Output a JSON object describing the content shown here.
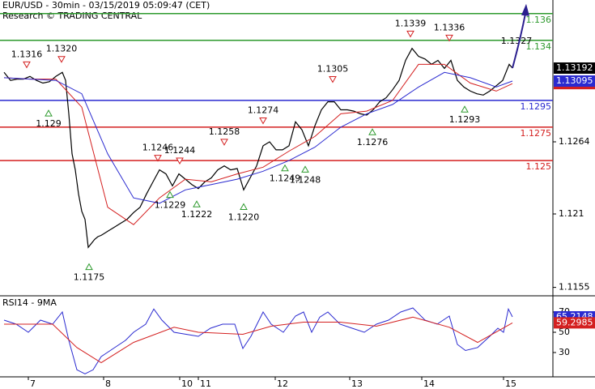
{
  "chart_data": [
    {
      "type": "line",
      "title": "EUR/USD - 30min - 03/15/2019 05:09:47 (CET)",
      "subtitle": "Research © TRADING CENTRAL",
      "xlim": [
        -2.5,
        339
      ],
      "xticks": [
        {
          "value": 15,
          "label": "7"
        },
        {
          "value": 61.5,
          "label": "8"
        },
        {
          "value": 108.5,
          "label": "10"
        },
        {
          "value": 120,
          "label": "11"
        },
        {
          "value": 167.5,
          "label": "12"
        },
        {
          "value": 213.5,
          "label": "13"
        },
        {
          "value": 258,
          "label": "14"
        },
        {
          "value": 308.5,
          "label": "15"
        }
      ],
      "ylim": [
        1.11487,
        1.13702
      ],
      "yticks": [
        1.1155,
        1.121,
        1.1264
      ],
      "series": [
        {
          "color": "#000000",
          "width": 1.2,
          "box": true,
          "x": [
            0,
            4,
            8,
            12,
            16,
            20,
            24,
            28,
            32,
            36,
            38,
            40,
            42,
            44,
            46,
            48,
            50,
            52,
            54,
            56,
            58,
            60,
            64,
            68,
            72,
            76,
            80,
            84,
            88,
            92,
            96,
            100,
            104,
            108,
            112,
            116,
            120,
            124,
            128,
            132,
            136,
            140,
            144,
            148,
            152,
            156,
            160,
            164,
            168,
            172,
            176,
            180,
            184,
            188,
            192,
            196,
            200,
            204,
            208,
            212,
            216,
            220,
            224,
            228,
            232,
            236,
            240,
            244,
            248,
            252,
            256,
            260,
            264,
            268,
            272,
            276,
            280,
            284,
            288,
            292,
            296,
            300,
            304,
            308,
            312,
            314
          ],
          "values": [
            1.1316,
            1.131,
            1.1311,
            1.1311,
            1.1313,
            1.131,
            1.1308,
            1.1309,
            1.1313,
            1.1316,
            1.131,
            1.1285,
            1.1255,
            1.1243,
            1.1225,
            1.1212,
            1.1206,
            1.1185,
            1.1188,
            1.1191,
            1.1193,
            1.1194,
            1.1197,
            1.12,
            1.1203,
            1.1206,
            1.1211,
            1.1215,
            1.1225,
            1.1234,
            1.1243,
            1.124,
            1.1231,
            1.124,
            1.1236,
            1.1232,
            1.1229,
            1.1234,
            1.1237,
            1.1243,
            1.1246,
            1.1243,
            1.1244,
            1.1228,
            1.1237,
            1.1246,
            1.1261,
            1.1264,
            1.1258,
            1.1258,
            1.1261,
            1.1279,
            1.1273,
            1.1261,
            1.1276,
            1.1288,
            1.1294,
            1.1294,
            1.1288,
            1.1288,
            1.1287,
            1.1285,
            1.1284,
            1.1288,
            1.1294,
            1.1297,
            1.1303,
            1.131,
            1.1325,
            1.1334,
            1.1328,
            1.1326,
            1.1322,
            1.1325,
            1.1319,
            1.1325,
            1.131,
            1.1305,
            1.1302,
            1.13,
            1.1299,
            1.1302,
            1.1306,
            1.131,
            1.1322,
            1.13192
          ]
        },
        {
          "color": "#d42020",
          "width": 1,
          "box": true,
          "x": [
            0,
            16,
            32,
            48,
            64,
            80,
            96,
            112,
            128,
            144,
            160,
            176,
            192,
            208,
            224,
            240,
            256,
            272,
            288,
            304,
            314
          ],
          "values": [
            1.1312,
            1.1311,
            1.1311,
            1.129,
            1.1215,
            1.1202,
            1.1222,
            1.1236,
            1.1234,
            1.124,
            1.1245,
            1.1257,
            1.1268,
            1.1285,
            1.1287,
            1.1295,
            1.1322,
            1.1322,
            1.1308,
            1.1302,
            1.13076
          ]
        },
        {
          "color": "#2a2ad0",
          "width": 1,
          "box": true,
          "x": [
            0,
            16,
            32,
            48,
            64,
            80,
            96,
            112,
            128,
            144,
            160,
            176,
            192,
            208,
            224,
            240,
            256,
            272,
            288,
            304,
            314
          ],
          "values": [
            1.1312,
            1.1311,
            1.131,
            1.13,
            1.1255,
            1.1222,
            1.1218,
            1.1228,
            1.1232,
            1.1236,
            1.1242,
            1.125,
            1.126,
            1.1275,
            1.1285,
            1.1292,
            1.1305,
            1.1316,
            1.1312,
            1.1305,
            1.13095
          ]
        }
      ],
      "levels": [
        {
          "value": 1.136,
          "color": "#2e9a2e"
        },
        {
          "value": 1.134,
          "color": "#2e9a2e"
        },
        {
          "value": 1.1295,
          "color": "#2a2ad0"
        },
        {
          "value": 1.1275,
          "color": "#d42020"
        },
        {
          "value": 1.125,
          "color": "#d42020"
        }
      ],
      "annotations": [
        {
          "x": 14,
          "value": 1.1316,
          "kind": "high"
        },
        {
          "x": 35.5,
          "value": 1.132,
          "label": "1.1320",
          "kind": "high"
        },
        {
          "x": 27.5,
          "value": 1.129,
          "kind": "low"
        },
        {
          "x": 52.5,
          "value": 1.1175,
          "kind": "low"
        },
        {
          "x": 95,
          "value": 1.1246,
          "kind": "high"
        },
        {
          "x": 108.5,
          "value": 1.1244,
          "kind": "high"
        },
        {
          "x": 102.5,
          "value": 1.1229,
          "kind": "low"
        },
        {
          "x": 119,
          "value": 1.1222,
          "kind": "low"
        },
        {
          "x": 136,
          "value": 1.1258,
          "kind": "high"
        },
        {
          "x": 148,
          "value": 1.122,
          "label": "1.1220",
          "kind": "low"
        },
        {
          "x": 160,
          "value": 1.1274,
          "kind": "high"
        },
        {
          "x": 173.5,
          "value": 1.1249,
          "kind": "low"
        },
        {
          "x": 186,
          "value": 1.1248,
          "kind": "low"
        },
        {
          "x": 203,
          "value": 1.1305,
          "kind": "high"
        },
        {
          "x": 227.5,
          "value": 1.1276,
          "kind": "low"
        },
        {
          "x": 251,
          "value": 1.1339,
          "kind": "high"
        },
        {
          "x": 275,
          "value": 1.1336,
          "kind": "high"
        },
        {
          "x": 284.5,
          "value": 1.1293,
          "kind": "low"
        },
        {
          "x": 316.5,
          "value": 1.1327,
          "kind": "target"
        }
      ]
    },
    {
      "type": "line",
      "title": "RSI14 - 9MA",
      "ylim": [
        6,
        86
      ],
      "yticks": [
        30,
        50,
        70
      ],
      "series": [
        {
          "color": "#2a2ad0",
          "width": 1,
          "box": true,
          "x": [
            0,
            7.5,
            15,
            22.5,
            30,
            36,
            40,
            45,
            50,
            55,
            60,
            67.5,
            75,
            80,
            87.5,
            92.5,
            97.5,
            105,
            112.5,
            120,
            127.5,
            135,
            142.5,
            147.5,
            152.5,
            160,
            165,
            172.5,
            180,
            185,
            190,
            195,
            200,
            207.5,
            215,
            222.5,
            230,
            237.5,
            245,
            252.5,
            260,
            267.5,
            275,
            280,
            285,
            292.5,
            300,
            305,
            308.5,
            311.5,
            314
          ],
          "values": [
            62,
            58,
            50,
            62,
            58,
            70,
            42,
            13,
            9,
            13,
            26,
            34,
            42,
            50,
            58,
            73,
            62,
            50,
            48,
            46,
            54,
            58,
            58,
            34,
            46,
            70,
            58,
            50,
            66,
            70,
            50,
            65,
            70,
            58,
            54,
            50,
            58,
            62,
            70,
            74,
            62,
            58,
            66,
            38,
            32,
            35,
            46,
            54,
            50,
            73,
            65.2148
          ]
        },
        {
          "color": "#d42020",
          "width": 1,
          "box": true,
          "x": [
            0,
            30,
            45,
            60,
            80,
            105,
            120,
            147.5,
            165,
            185,
            207.5,
            230,
            252.5,
            275,
            292.5,
            314
          ],
          "values": [
            58,
            58,
            35,
            20,
            40,
            55,
            50,
            48,
            56,
            60,
            60,
            56,
            65,
            55,
            40,
            59.2985
          ]
        }
      ]
    }
  ]
}
